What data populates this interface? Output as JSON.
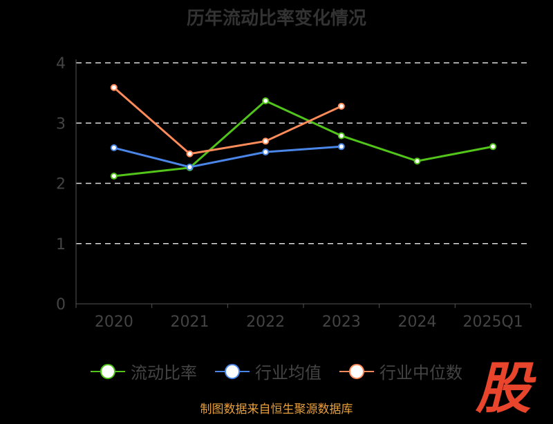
{
  "chart_data": {
    "type": "line",
    "title": "历年流动比率变化情况",
    "categories": [
      "2020",
      "2021",
      "2022",
      "2023",
      "2024",
      "2025Q1"
    ],
    "ylim": [
      0,
      4
    ],
    "yticks": [
      "0",
      "1",
      "2",
      "3",
      "4"
    ],
    "grid": true,
    "legend_placement": "bottom",
    "series": [
      {
        "name": "流动比率",
        "color": "#52c41a",
        "values": [
          2.12,
          2.26,
          3.37,
          2.79,
          2.37,
          2.61
        ]
      },
      {
        "name": "行业均值",
        "color": "#4a86e8",
        "values": [
          2.59,
          2.27,
          2.52,
          2.61,
          null,
          null
        ]
      },
      {
        "name": "行业中位数",
        "color": "#ff8c5a",
        "values": [
          3.59,
          2.49,
          2.7,
          3.28,
          null,
          null
        ]
      }
    ]
  },
  "footer": "制图数据来自恒生聚源数据库",
  "logo_text": "股"
}
